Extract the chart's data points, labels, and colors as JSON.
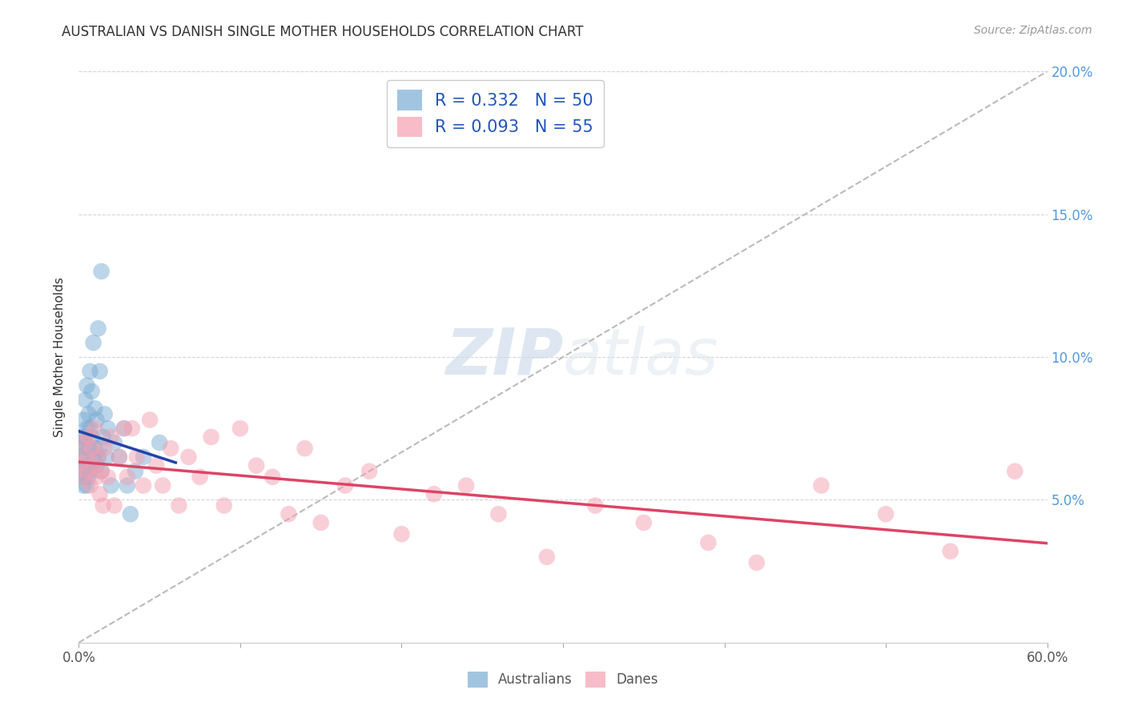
{
  "title": "AUSTRALIAN VS DANISH SINGLE MOTHER HOUSEHOLDS CORRELATION CHART",
  "source": "Source: ZipAtlas.com",
  "ylabel": "Single Mother Households",
  "watermark_zip": "ZIP",
  "watermark_atlas": "atlas",
  "xlim": [
    0,
    0.6
  ],
  "ylim": [
    0,
    0.2
  ],
  "xticks": [
    0.0,
    0.1,
    0.2,
    0.3,
    0.4,
    0.5,
    0.6
  ],
  "xticklabels_show": {
    "0": "0.0%",
    "6": "60.0%"
  },
  "right_yticklabels": [
    "5.0%",
    "10.0%",
    "15.0%",
    "20.0%"
  ],
  "right_yticks": [
    0.05,
    0.1,
    0.15,
    0.2
  ],
  "australian_color": "#7aadd4",
  "danish_color": "#f4a0b0",
  "australian_line_color": "#2244aa",
  "danish_line_color": "#dd4466",
  "australian_R": 0.332,
  "australian_N": 50,
  "danish_R": 0.093,
  "danish_N": 55,
  "legend_label_aus": "Australians",
  "legend_label_dan": "Danes",
  "aus_scatter_x": [
    0.001,
    0.001,
    0.002,
    0.002,
    0.003,
    0.003,
    0.003,
    0.003,
    0.004,
    0.004,
    0.004,
    0.004,
    0.005,
    0.005,
    0.005,
    0.005,
    0.006,
    0.006,
    0.006,
    0.007,
    0.007,
    0.007,
    0.008,
    0.008,
    0.008,
    0.009,
    0.009,
    0.01,
    0.01,
    0.011,
    0.011,
    0.012,
    0.012,
    0.013,
    0.013,
    0.014,
    0.014,
    0.015,
    0.016,
    0.017,
    0.018,
    0.02,
    0.022,
    0.025,
    0.028,
    0.03,
    0.032,
    0.035,
    0.04,
    0.05
  ],
  "aus_scatter_y": [
    0.065,
    0.068,
    0.06,
    0.072,
    0.055,
    0.062,
    0.07,
    0.078,
    0.058,
    0.065,
    0.072,
    0.085,
    0.055,
    0.062,
    0.075,
    0.09,
    0.058,
    0.068,
    0.08,
    0.06,
    0.075,
    0.095,
    0.062,
    0.072,
    0.088,
    0.065,
    0.105,
    0.068,
    0.082,
    0.062,
    0.078,
    0.065,
    0.11,
    0.068,
    0.095,
    0.06,
    0.13,
    0.072,
    0.08,
    0.065,
    0.075,
    0.055,
    0.07,
    0.065,
    0.075,
    0.055,
    0.045,
    0.06,
    0.065,
    0.07
  ],
  "dan_scatter_x": [
    0.001,
    0.002,
    0.003,
    0.004,
    0.005,
    0.006,
    0.007,
    0.008,
    0.009,
    0.01,
    0.011,
    0.012,
    0.013,
    0.014,
    0.015,
    0.016,
    0.018,
    0.02,
    0.022,
    0.025,
    0.028,
    0.03,
    0.033,
    0.036,
    0.04,
    0.044,
    0.048,
    0.052,
    0.057,
    0.062,
    0.068,
    0.075,
    0.082,
    0.09,
    0.1,
    0.11,
    0.12,
    0.13,
    0.14,
    0.15,
    0.165,
    0.18,
    0.2,
    0.22,
    0.24,
    0.26,
    0.29,
    0.32,
    0.35,
    0.39,
    0.42,
    0.46,
    0.5,
    0.54,
    0.58
  ],
  "dan_scatter_y": [
    0.063,
    0.058,
    0.07,
    0.065,
    0.06,
    0.072,
    0.055,
    0.068,
    0.062,
    0.075,
    0.058,
    0.065,
    0.052,
    0.06,
    0.048,
    0.068,
    0.058,
    0.072,
    0.048,
    0.065,
    0.075,
    0.058,
    0.075,
    0.065,
    0.055,
    0.078,
    0.062,
    0.055,
    0.068,
    0.048,
    0.065,
    0.058,
    0.072,
    0.048,
    0.075,
    0.062,
    0.058,
    0.045,
    0.068,
    0.042,
    0.055,
    0.06,
    0.038,
    0.052,
    0.055,
    0.045,
    0.03,
    0.048,
    0.042,
    0.035,
    0.028,
    0.055,
    0.045,
    0.032,
    0.06
  ]
}
